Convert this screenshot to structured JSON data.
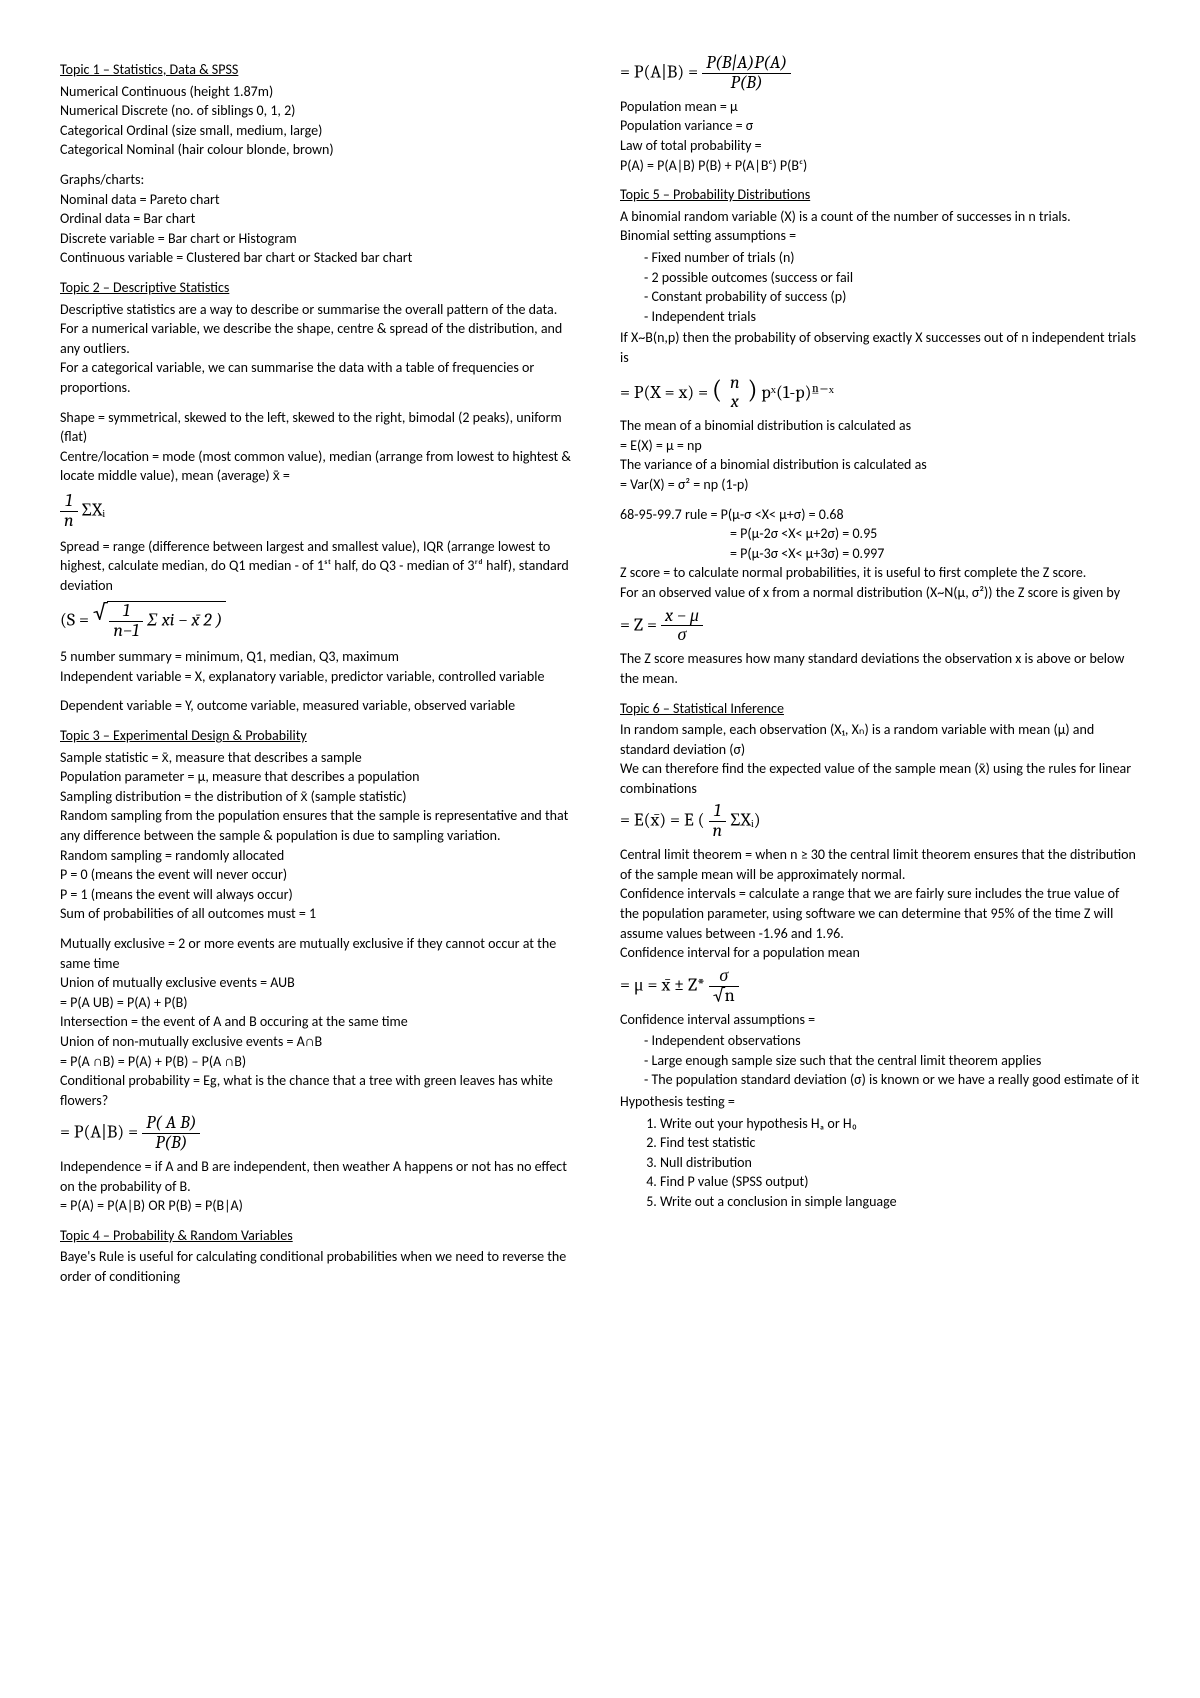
{
  "left": {
    "t1_head": "Topic 1 – Statistics, Data & SPSS",
    "t1_lines": [
      "Numerical Continuous (height 1.87m)",
      "Numerical Discrete (no. of siblings 0, 1, 2)",
      "Categorical Ordinal (size small, medium, large)",
      "Categorical Nominal (hair colour blonde, brown)"
    ],
    "graphs_head": "Graphs/charts:",
    "graphs_lines": [
      "Nominal data = Pareto chart",
      "Ordinal data = Bar chart",
      "Discrete variable = Bar chart or Histogram",
      "Continuous variable = Clustered bar chart or Stacked bar chart"
    ],
    "t2_head": "Topic 2 – Descriptive Statistics",
    "t2_l1": "Descriptive statistics are a way to describe or summarise the overall pattern of the data.",
    "t2_l2": "For a numerical variable, we describe the shape, centre & spread of the distribution, and any outliers.",
    "t2_l3": "For a categorical variable, we can summarise the data with a table of frequencies or proportions.",
    "t2_l4": "Shape = symmetrical, skewed to the left, skewed to the right, bimodal (2 peaks), uniform (flat)",
    "t2_l5": "Centre/location = mode (most common value), median (arrange from lowest to hightest & locate middle value), mean (average) x̄ =",
    "t2_frac1_n": "1",
    "t2_frac1_d": "n",
    "t2_sum": " ΣXᵢ",
    "t2_l6": "Spread = range (difference between largest and smallest value), IQR (arrange lowest to highest, calculate median, do Q1 median - of 1ˢᵗ half, do Q3 - median of 3ʳᵈ half), standard deviation",
    "t2_sd_lead": "(S = ",
    "t2_sd_frac_n": "1",
    "t2_sd_frac_d": "n−1",
    "t2_sd_tail": " Σ xi − x̄ 2   )",
    "t2_l7": "5 number summary = minimum, Q1, median, Q3, maximum",
    "t2_l8": "Independent variable = X, explanatory variable, predictor variable, controlled variable",
    "t2_l9": "Dependent variable = Y, outcome variable, measured variable, observed variable",
    "t3_head": "Topic 3 – Experimental Design & Probability",
    "t3_lines": [
      "Sample statistic = x̄, measure that describes a sample",
      "Population parameter = μ, measure that describes a population",
      "Sampling distribution = the distribution of x̄ (sample statistic)",
      "Random sampling from the population ensures that the sample is representative and that any difference between the sample & population is due to sampling variation.",
      "Random sampling = randomly allocated",
      "P = 0 (means the event will never occur)",
      "P = 1 (means the event will always occur)",
      "Sum of probabilities of all outcomes must = 1"
    ],
    "t3_b2": [
      "Mutually exclusive = 2 or more events are mutually exclusive if they cannot occur at the same time",
      "Union of mutually exclusive events = AUB",
      "= P(A UB) = P(A) + P(B)",
      "Intersection = the event of A and B occuring at the same time",
      "Union of non-mutually exclusive events = A∩B",
      "= P(A ∩B) = P(A) + P(B) – P(A ∩B)",
      "Conditional probability = Eg, what is the chance that a tree with green leaves has white flowers?"
    ],
    "t3_cp_lead": "= P(A|B) = ",
    "t3_cp_num": "P( A B)",
    "t3_cp_den": "P(B)",
    "t3_ind": "Independence = if A and B are independent, then weather A happens or not has no effect on the probability of B.",
    "t3_ind2": "= P(A) = P(A|B) OR P(B) = P(B|A)",
    "t4_head": "Topic 4 – Probability & Random Variables",
    "t4_l1": "Baye's Rule is useful for calculating conditional probabilities when we need to reverse the order of conditioning"
  },
  "right": {
    "bayes_lead": "= P(A|B) = ",
    "bayes_num": "P(B|A)P(A)",
    "bayes_den": "P(B)",
    "pop_lines": [
      "Population mean = μ",
      "Population variance = σ",
      "Law of total probability =",
      "P(A) = P(A|B) P(B) + P(A|Bᶜ) P(Bᶜ)"
    ],
    "t5_head": "Topic 5 – Probability Distributions",
    "t5_l1": "A binomial random variable (X) is a count of the number of successes in n trials.",
    "t5_l2": "Binomial setting assumptions =",
    "t5_bullets": [
      "Fixed number of trials (n)",
      "2 possible outcomes (success or fail",
      "Constant probability of success (p)",
      "Independent trials"
    ],
    "t5_l3": "If X~B(n,p) then the probability of observing exactly X successes out of n independent trials is",
    "t5_px_lead": "= P(X = x) = ",
    "t5_px_num": "n",
    "t5_px_den": "x",
    "t5_px_tail": "   pˣ(1-p)ⁿ⁻ˣ",
    "t5_l4": "The mean of a binomial distribution is calculated as",
    "t5_l5": "= E(X) = μ = np",
    "t5_l6": "The variance of a binomial distribution is calculated as",
    "t5_l7": "= Var(X) = σ² = np (1-p)",
    "t5_rule1": "68-95-99.7 rule = P(μ-σ <X< μ+σ) = 0.68",
    "t5_rule2": "= P(μ-2σ <X< μ+2σ) = 0.95",
    "t5_rule3": "= P(μ-3σ <X< μ+3σ) = 0.997",
    "t5_l8": "Z score = to calculate normal probabilities, it is useful to first complete the Z score.",
    "t5_l9": "For an observed value of x from a normal distribution (X~N(μ, σ²)) the Z score is given by",
    "t5_z_lead": "= Z = ",
    "t5_z_num": "x − μ",
    "t5_z_den": "σ",
    "t5_l10": "The Z score measures how many standard deviations the observation x is above or below the mean.",
    "t6_head": "Topic 6 – Statistical Inference",
    "t6_l1": "In random sample, each observation (X₁, Xₙ) is a random variable with mean (μ) and standard deviation (σ)",
    "t6_l2": "We can therefore find the expected value of the sample mean (x̄) using the rules for linear combinations",
    "t6_ex_lead": "= E(x̄) = E ( ",
    "t6_ex_num": "1",
    "t6_ex_den": "n",
    "t6_ex_tail": "   ΣXᵢ)",
    "t6_l3": "Central limit theorem = when n ≥ 30 the central limit theorem ensures that the distribution of the sample mean will be approximately normal.",
    "t6_l4": "Confidence intervals = calculate a range that we are fairly sure includes the true value of the population parameter, using software we can determine that 95% of the time Z will assume values between -1.96 and 1.96.",
    "t6_l5": "Confidence interval for a population mean",
    "t6_ci_lead": "= μ = x̄ ± Z* ",
    "t6_ci_num": "σ",
    "t6_ci_den": "√n",
    "t6_l6": "Confidence interval assumptions =",
    "t6_bullets": [
      "Independent observations",
      "Large enough sample size such that the central limit theorem applies",
      "The population standard deviation (σ) is known or we have a really good estimate of it"
    ],
    "t6_l7": "Hypothesis testing =",
    "t6_steps": [
      "Write out your hypothesis Hₐ or H₀",
      "Find test statistic",
      "Null distribution",
      "Find P value (SPSS output)",
      "Write out a conclusion in simple language"
    ]
  }
}
